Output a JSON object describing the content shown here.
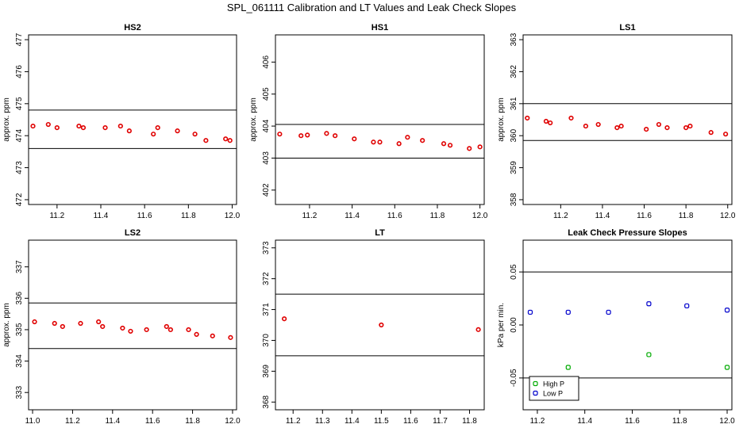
{
  "title": "SPL_061111  Calibration and LT Values and Leak Check Slopes",
  "colors": {
    "red": "#e00000",
    "blue": "#0000cc",
    "green": "#00aa00"
  },
  "chart_data": [
    {
      "type": "scatter",
      "title": "HS2",
      "ylabel": "approx. ppm",
      "xlim": [
        11.07,
        12.02
      ],
      "ylim": [
        471.85,
        477.15
      ],
      "xticks": [
        "11.2",
        "11.4",
        "11.6",
        "11.8",
        "12.0"
      ],
      "yticks": [
        "472",
        "473",
        "474",
        "475",
        "476",
        "477"
      ],
      "hlines": [
        474.8,
        473.6
      ],
      "series": [
        {
          "color": "red",
          "x": [
            11.09,
            11.16,
            11.2,
            11.3,
            11.32,
            11.42,
            11.49,
            11.53,
            11.64,
            11.66,
            11.75,
            11.83,
            11.88,
            11.97,
            11.99
          ],
          "y": [
            474.3,
            474.35,
            474.25,
            474.3,
            474.25,
            474.25,
            474.3,
            474.15,
            474.05,
            474.25,
            474.15,
            474.05,
            473.85,
            473.9,
            473.85
          ]
        }
      ]
    },
    {
      "type": "scatter",
      "title": "HS1",
      "ylabel": "approx. ppm",
      "xlim": [
        11.04,
        12.02
      ],
      "ylim": [
        401.55,
        406.85
      ],
      "xticks": [
        "11.2",
        "11.4",
        "11.6",
        "11.8",
        "12.0"
      ],
      "yticks": [
        "402",
        "403",
        "404",
        "405",
        "406"
      ],
      "hlines": [
        404.05,
        403.0
      ],
      "series": [
        {
          "color": "red",
          "x": [
            11.06,
            11.16,
            11.19,
            11.28,
            11.32,
            11.41,
            11.5,
            11.53,
            11.62,
            11.66,
            11.73,
            11.83,
            11.86,
            11.95,
            12.0
          ],
          "y": [
            403.75,
            403.7,
            403.72,
            403.77,
            403.7,
            403.6,
            403.5,
            403.5,
            403.45,
            403.65,
            403.55,
            403.45,
            403.4,
            403.3,
            403.35
          ]
        }
      ]
    },
    {
      "type": "scatter",
      "title": "LS1",
      "ylabel": "approx. ppm",
      "xlim": [
        11.02,
        12.02
      ],
      "ylim": [
        357.85,
        363.15
      ],
      "xticks": [
        "11.2",
        "11.4",
        "11.6",
        "11.8",
        "12.0"
      ],
      "yticks": [
        "358",
        "359",
        "360",
        "361",
        "362",
        "363"
      ],
      "hlines": [
        361.0,
        359.85
      ],
      "series": [
        {
          "color": "red",
          "x": [
            11.04,
            11.13,
            11.15,
            11.25,
            11.32,
            11.38,
            11.47,
            11.49,
            11.61,
            11.67,
            11.71,
            11.8,
            11.82,
            11.92,
            11.99
          ],
          "y": [
            360.55,
            360.45,
            360.4,
            360.55,
            360.3,
            360.35,
            360.25,
            360.3,
            360.2,
            360.35,
            360.25,
            360.25,
            360.3,
            360.1,
            360.05
          ]
        }
      ]
    },
    {
      "type": "scatter",
      "title": "LS2",
      "ylabel": "approx. ppm",
      "xlim": [
        10.98,
        12.02
      ],
      "ylim": [
        332.45,
        337.85
      ],
      "xticks": [
        "11.0",
        "11.2",
        "11.4",
        "11.6",
        "11.8",
        "12.0"
      ],
      "yticks": [
        "333",
        "334",
        "335",
        "336",
        "337"
      ],
      "hlines": [
        335.85,
        334.4
      ],
      "series": [
        {
          "color": "red",
          "x": [
            11.01,
            11.11,
            11.15,
            11.24,
            11.33,
            11.35,
            11.45,
            11.49,
            11.57,
            11.67,
            11.69,
            11.78,
            11.82,
            11.9,
            11.99
          ],
          "y": [
            335.25,
            335.2,
            335.1,
            335.2,
            335.25,
            335.1,
            335.05,
            334.95,
            335.0,
            335.1,
            335.0,
            335.0,
            334.85,
            334.8,
            334.75
          ]
        }
      ]
    },
    {
      "type": "scatter",
      "title": "LT",
      "ylabel": "",
      "xlim": [
        11.14,
        11.85
      ],
      "ylim": [
        367.75,
        373.25
      ],
      "xticks": [
        "11.2",
        "11.3",
        "11.4",
        "11.5",
        "11.6",
        "11.7",
        "11.8"
      ],
      "yticks": [
        "368",
        "369",
        "370",
        "371",
        "372",
        "373"
      ],
      "hlines": [
        371.5,
        369.5
      ],
      "series": [
        {
          "color": "red",
          "x": [
            11.17,
            11.5,
            11.83
          ],
          "y": [
            370.7,
            370.5,
            370.35
          ]
        }
      ]
    },
    {
      "type": "scatter",
      "title": "Leak Check Pressure Slopes",
      "ylabel": "kPa per min.",
      "xlim": [
        11.14,
        12.02
      ],
      "ylim": [
        -0.08,
        0.08
      ],
      "xticks": [
        "11.2",
        "11.4",
        "11.6",
        "11.8",
        "12.0"
      ],
      "yticks": [
        "-0.05",
        "0.00",
        "0.05"
      ],
      "ytick_values": [
        -0.05,
        0.0,
        0.05
      ],
      "hlines": [
        0.05,
        -0.05
      ],
      "legend": {
        "position": "bottom-left",
        "entries": [
          {
            "label": "High P",
            "color": "green"
          },
          {
            "label": "Low P",
            "color": "blue"
          }
        ]
      },
      "series": [
        {
          "name": "High P",
          "color": "green",
          "x": [
            11.33,
            11.67,
            12.0
          ],
          "y": [
            -0.04,
            -0.028,
            -0.04
          ]
        },
        {
          "name": "Low P",
          "color": "blue",
          "x": [
            11.17,
            11.33,
            11.5,
            11.67,
            11.83,
            12.0
          ],
          "y": [
            0.012,
            0.012,
            0.012,
            0.02,
            0.018,
            0.014
          ]
        }
      ]
    }
  ]
}
